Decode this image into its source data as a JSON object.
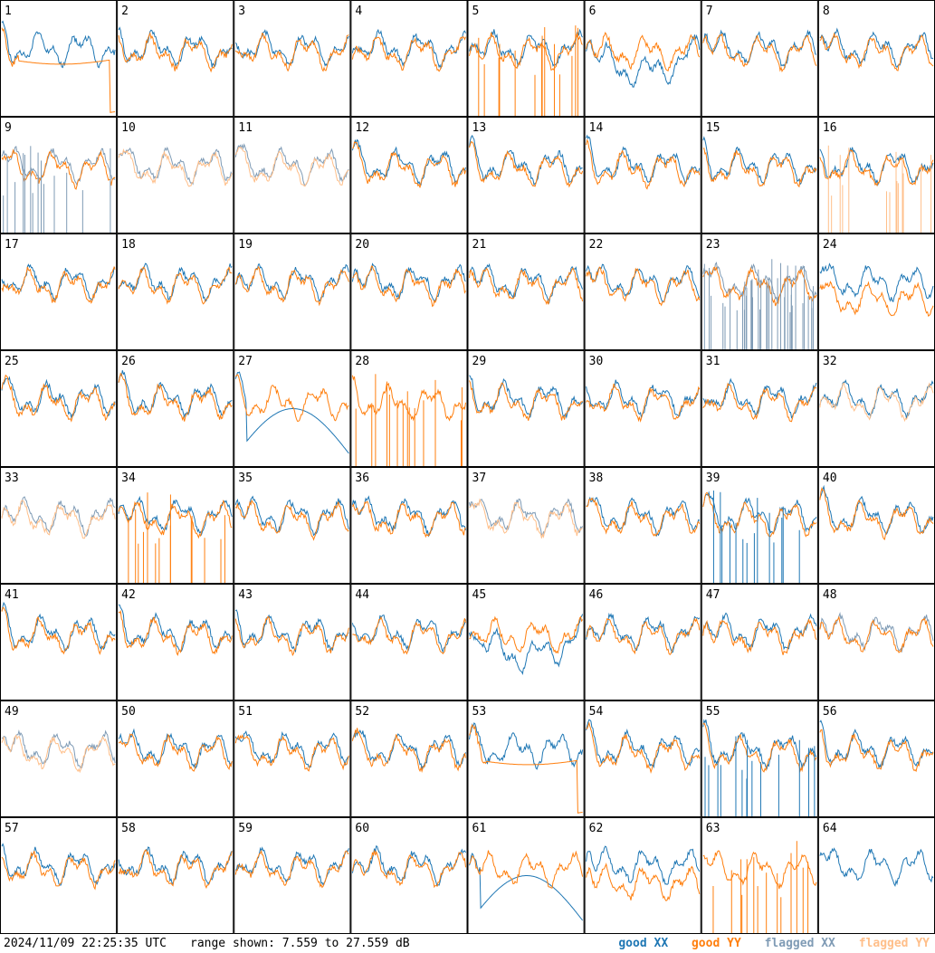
{
  "chart_data": {
    "type": "line",
    "panel_count": 64,
    "columns": 8,
    "panels": [
      "1",
      "2",
      "3",
      "4",
      "5",
      "6",
      "7",
      "8",
      "9",
      "10",
      "11",
      "12",
      "13",
      "14",
      "15",
      "16",
      "17",
      "18",
      "19",
      "20",
      "21",
      "22",
      "23",
      "24",
      "25",
      "26",
      "27",
      "28",
      "29",
      "30",
      "31",
      "32",
      "33",
      "34",
      "35",
      "36",
      "37",
      "38",
      "39",
      "40",
      "41",
      "42",
      "43",
      "44",
      "45",
      "46",
      "47",
      "48",
      "49",
      "50",
      "51",
      "52",
      "53",
      "54",
      "55",
      "56",
      "57",
      "58",
      "59",
      "60",
      "61",
      "62",
      "63",
      "64"
    ],
    "ylim_db": [
      7.559,
      27.559
    ],
    "series": [
      {
        "name": "good XX",
        "color": "#1f77b4"
      },
      {
        "name": "good YY",
        "color": "#ff7f0e"
      },
      {
        "name": "flagged XX",
        "color": "#7f9bb5"
      },
      {
        "name": "flagged YY",
        "color": "#ffbf8a"
      }
    ],
    "panel_modes": {
      "1": "y_drop",
      "5": "y_spikes",
      "6": "mid_dip",
      "9": "flag_x_spikes",
      "10": "flag_both",
      "11": "flag_both",
      "16": "y_flag_spikes",
      "23": "flag_x_noise",
      "24": "y_low",
      "27": "x_drop",
      "28": "y_spikes_full",
      "32": "flag_y_only",
      "33": "flag_both",
      "34": "y_spikes_x",
      "37": "flag_both",
      "39": "x_spikes",
      "45": "mid_dip",
      "48": "flag_x_low",
      "49": "flag_both",
      "53": "y_drop",
      "55": "x_spikes_low",
      "61": "x_drop",
      "62": "y_low",
      "63": "y_spikes_full",
      "64": "x_only"
    }
  },
  "footer": {
    "timestamp": "2024/11/09 22:25:35 UTC",
    "range_text": "range shown: 7.559 to 27.559 dB",
    "legend": [
      "good XX",
      "good YY",
      "flagged XX",
      "flagged YY"
    ]
  }
}
